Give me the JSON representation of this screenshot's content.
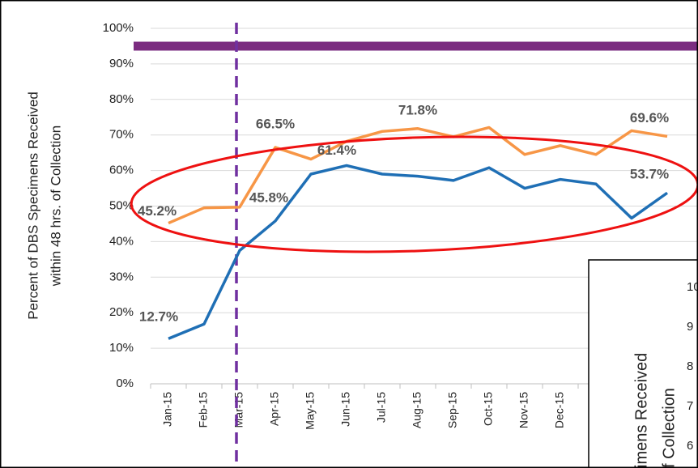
{
  "chart_data": {
    "type": "line",
    "ylabel": [
      "Percent of DBS Specimens Received",
      "within 48 hrs. of Collection"
    ],
    "categories": [
      "Jan-15",
      "Feb-15",
      "Mar-15",
      "Apr-15",
      "May-15",
      "Jun-15",
      "Jul-15",
      "Aug-15",
      "Sep-15",
      "Oct-15",
      "Nov-15",
      "Dec-15",
      null,
      null,
      null
    ],
    "series": [
      {
        "color": "#f79646",
        "values": [
          45.2,
          49.5,
          49.7,
          66.5,
          63.2,
          68.2,
          71.0,
          71.8,
          69.5,
          72.1,
          64.5,
          67.0,
          64.5,
          71.2,
          69.6
        ],
        "value_labels": [
          "45.2%",
          null,
          null,
          "66.5%",
          null,
          null,
          null,
          "71.8%",
          null,
          null,
          null,
          null,
          null,
          null,
          "69.6%"
        ]
      },
      {
        "color": "#1f6fb5",
        "values": [
          12.7,
          16.8,
          37.5,
          45.8,
          59.0,
          61.4,
          59.0,
          58.4,
          57.2,
          60.8,
          55.0,
          57.5,
          56.2,
          46.6,
          53.7
        ],
        "value_labels": [
          "12.7%",
          null,
          null,
          "45.8%",
          null,
          "61.4%",
          null,
          null,
          null,
          null,
          null,
          null,
          null,
          null,
          "53.7%"
        ]
      }
    ],
    "ylim": [
      0,
      100
    ],
    "yticks": [
      {
        "value": 0,
        "label": "0%"
      },
      {
        "value": 10,
        "label": "10%"
      },
      {
        "value": 20,
        "label": "20%"
      },
      {
        "value": 30,
        "label": "30%"
      },
      {
        "value": 40,
        "label": "40%"
      },
      {
        "value": 50,
        "label": "50%"
      },
      {
        "value": 60,
        "label": "60%"
      },
      {
        "value": 70,
        "label": "70%"
      },
      {
        "value": 80,
        "label": "80%"
      },
      {
        "value": 90,
        "label": "90%"
      },
      {
        "value": 100,
        "label": "100%"
      }
    ],
    "grid": true,
    "reference_line": {
      "value": 95,
      "color": "#7b2c80"
    },
    "vline": {
      "at": "Mar-15",
      "color": "#7030a0"
    },
    "inset": {
      "ylabel": [
        "imens Received",
        "f Collection"
      ],
      "tick_labels": [
        "10",
        "9",
        "8",
        "7",
        "6"
      ]
    }
  }
}
